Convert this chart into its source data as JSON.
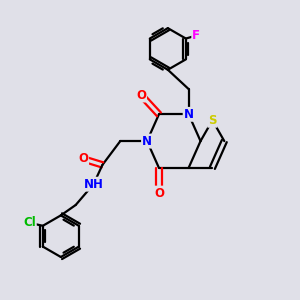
{
  "bg_color": "#e0e0e8",
  "bond_color": "#000000",
  "N_color": "#0000ff",
  "O_color": "#ff0000",
  "S_color": "#cccc00",
  "F_color": "#ff00ff",
  "Cl_color": "#00bb00",
  "line_width": 1.6,
  "font_size": 8.5,
  "xlim": [
    0,
    10
  ],
  "ylim": [
    0,
    10
  ]
}
